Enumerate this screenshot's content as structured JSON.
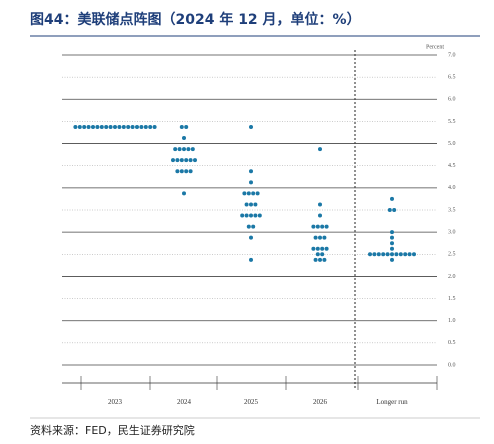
{
  "chart_data": {
    "type": "dot_plot",
    "title": "图44：美联储点阵图（2024 年 12 月，单位：%）",
    "y_label": "Percent",
    "source": "资料来源：FED，民生证券研究院",
    "color": "#1b78a6",
    "categories": [
      "2023",
      "2024",
      "2025",
      "2026",
      "Longer run"
    ],
    "values": [
      [
        5.375,
        5.375,
        5.375,
        5.375,
        5.375,
        5.375,
        5.375,
        5.375,
        5.375,
        5.375,
        5.375,
        5.375,
        5.375,
        5.375,
        5.375,
        5.375,
        5.375,
        5.375,
        5.375
      ],
      [
        5.375,
        5.375,
        5.125,
        4.875,
        4.875,
        4.875,
        4.875,
        4.875,
        4.625,
        4.625,
        4.625,
        4.625,
        4.625,
        4.625,
        4.375,
        4.375,
        4.375,
        4.375,
        3.875
      ],
      [
        5.375,
        4.375,
        4.125,
        3.875,
        3.875,
        3.875,
        3.875,
        3.625,
        3.625,
        3.625,
        3.375,
        3.375,
        3.375,
        3.375,
        3.375,
        3.125,
        3.125,
        2.875,
        2.375
      ],
      [
        4.875,
        3.625,
        3.375,
        3.125,
        3.125,
        3.125,
        3.125,
        2.875,
        2.875,
        2.875,
        2.625,
        2.625,
        2.625,
        2.625,
        2.5,
        2.5,
        2.375,
        2.375,
        2.375
      ],
      [
        3.75,
        3.5,
        3.5,
        3.0,
        2.875,
        2.75,
        2.625,
        2.5,
        2.5,
        2.5,
        2.5,
        2.5,
        2.5,
        2.5,
        2.5,
        2.5,
        2.5,
        2.5,
        2.375
      ]
    ],
    "ylim": [
      0,
      7
    ],
    "yticks": [
      {
        "value": 0,
        "label": "0.0"
      },
      {
        "value": 0.5,
        "label": "0.5"
      },
      {
        "value": 1,
        "label": "1.0"
      },
      {
        "value": 1.5,
        "label": "1.5"
      },
      {
        "value": 2,
        "label": "2.0"
      },
      {
        "value": 2.5,
        "label": "2.5"
      },
      {
        "value": 3,
        "label": "3.0"
      },
      {
        "value": 3.5,
        "label": "3.5"
      },
      {
        "value": 4,
        "label": "4.0"
      },
      {
        "value": 4.5,
        "label": "4.5"
      },
      {
        "value": 5,
        "label": "5.0"
      },
      {
        "value": 5.5,
        "label": "5.5"
      },
      {
        "value": 6,
        "label": "6.0"
      },
      {
        "value": 6.5,
        "label": "6.5"
      },
      {
        "value": 7,
        "label": "7.0"
      }
    ]
  }
}
